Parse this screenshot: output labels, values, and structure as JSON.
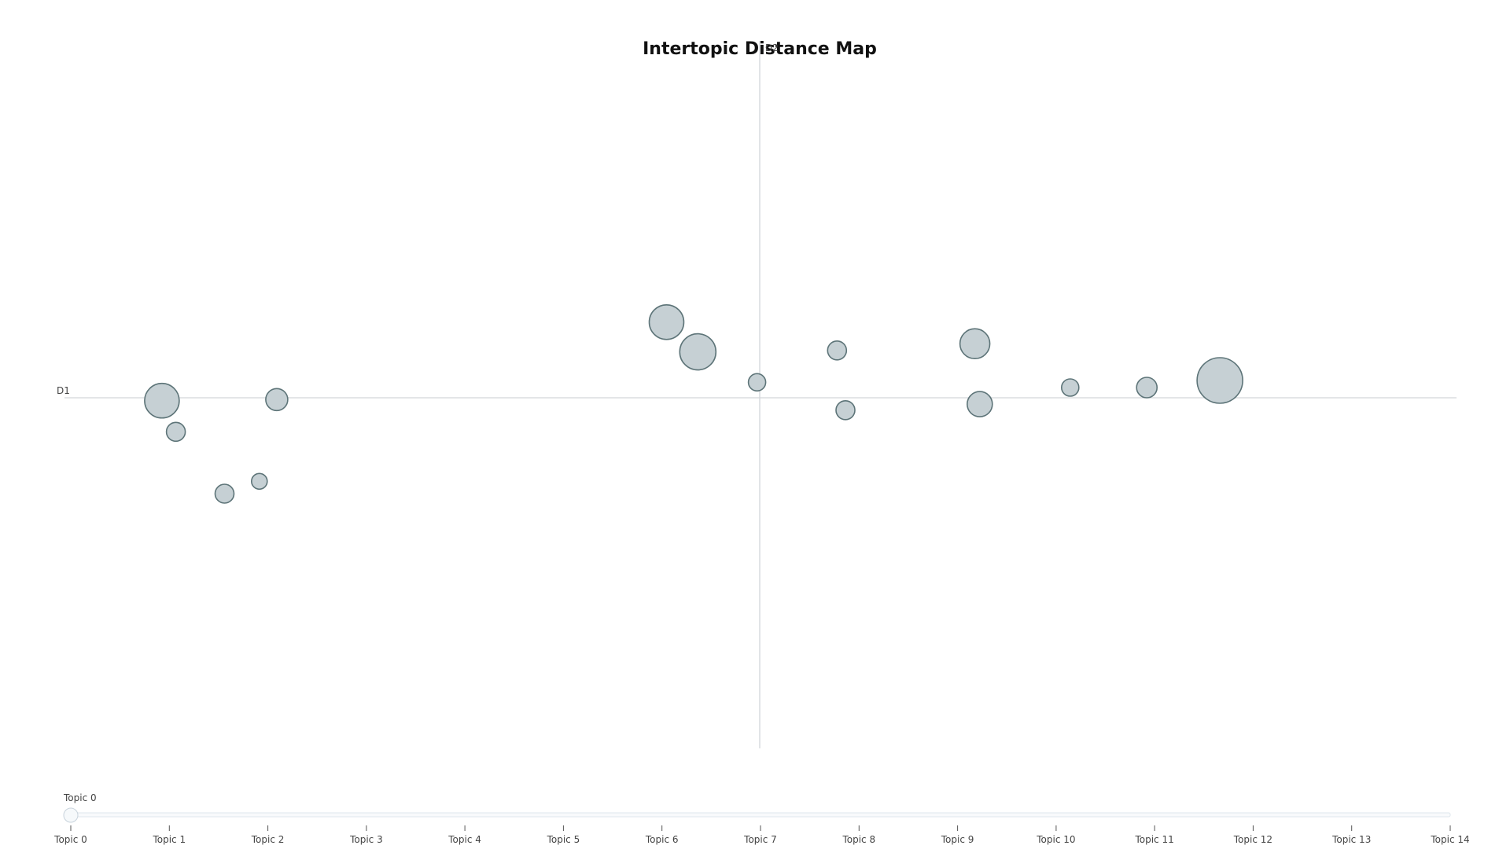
{
  "chart_data": {
    "type": "scatter",
    "title": "Intertopic Distance Map",
    "xlabel": "D2",
    "ylabel": "D1",
    "xlim": [
      -10,
      10
    ],
    "ylim": [
      -10,
      10
    ],
    "grid": false,
    "marker_fill": "#c6d0d4",
    "marker_stroke": "#5d7478",
    "axis_line_color": "#d3d6da",
    "points": [
      {
        "x": -8.6,
        "y": -0.17,
        "size": 22
      },
      {
        "x": -8.4,
        "y": -1.05,
        "size": 12
      },
      {
        "x": -7.7,
        "y": -2.8,
        "size": 12
      },
      {
        "x": -7.2,
        "y": -2.45,
        "size": 10
      },
      {
        "x": -6.95,
        "y": -0.14,
        "size": 14
      },
      {
        "x": -1.35,
        "y": 2.05,
        "size": 22
      },
      {
        "x": -0.9,
        "y": 1.21,
        "size": 23
      },
      {
        "x": -0.05,
        "y": 0.35,
        "size": 11
      },
      {
        "x": 1.1,
        "y": 1.25,
        "size": 12
      },
      {
        "x": 1.22,
        "y": -0.44,
        "size": 12
      },
      {
        "x": 3.08,
        "y": 1.44,
        "size": 19
      },
      {
        "x": 3.15,
        "y": -0.27,
        "size": 16
      },
      {
        "x": 4.45,
        "y": 0.2,
        "size": 11
      },
      {
        "x": 5.55,
        "y": 0.2,
        "size": 13
      },
      {
        "x": 6.6,
        "y": 0.4,
        "size": 29
      }
    ]
  },
  "slider": {
    "current_label": "Topic 0",
    "steps": [
      "Topic 0",
      "Topic 1",
      "Topic 2",
      "Topic 3",
      "Topic 4",
      "Topic 5",
      "Topic 6",
      "Topic 7",
      "Topic 8",
      "Topic 9",
      "Topic 10",
      "Topic 11",
      "Topic 12",
      "Topic 13",
      "Topic 14"
    ],
    "active_index": 0,
    "track_color": "#dfe6ec",
    "knob_color": "#f6f9fb"
  }
}
